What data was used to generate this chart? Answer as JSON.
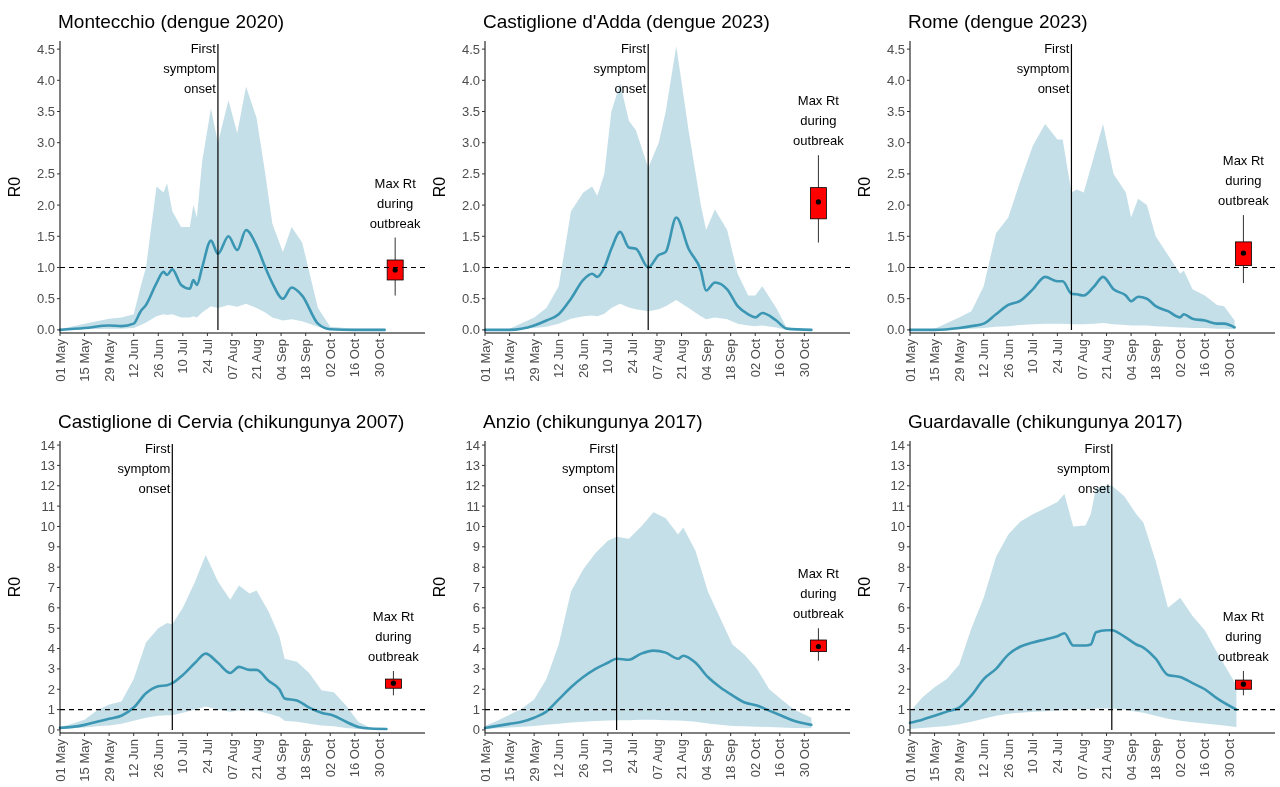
{
  "chart_data": [
    {
      "type": "line",
      "title": "Montecchio (dengue 2020)",
      "ylabel": "R0",
      "xlim": [
        "--05-01",
        "--11-25"
      ],
      "ylim": [
        -0.05,
        4.63
      ],
      "xticks": [
        {
          "value": "--05-01",
          "label": "01 May"
        },
        {
          "value": "--05-15",
          "label": "15 May"
        },
        {
          "value": "--05-29",
          "label": "29 May"
        },
        {
          "value": "--06-12",
          "label": "12 Jun"
        },
        {
          "value": "--06-26",
          "label": "26 Jun"
        },
        {
          "value": "--07-10",
          "label": "10 Jul"
        },
        {
          "value": "--07-24",
          "label": "24 Jul"
        },
        {
          "value": "--08-07",
          "label": "07 Aug"
        },
        {
          "value": "--08-21",
          "label": "21 Aug"
        },
        {
          "value": "--09-04",
          "label": "04 Sep"
        },
        {
          "value": "--09-18",
          "label": "18 Sep"
        },
        {
          "value": "--10-02",
          "label": "02 Oct"
        },
        {
          "value": "--10-16",
          "label": "16 Oct"
        },
        {
          "value": "--10-30",
          "label": "30 Oct"
        }
      ],
      "yticks": [
        {
          "value": 0,
          "label": "0.0"
        },
        {
          "value": 0.5,
          "label": "0.5"
        },
        {
          "value": 1,
          "label": "1.0"
        },
        {
          "value": 1.5,
          "label": "1.5"
        },
        {
          "value": 2,
          "label": "2.0"
        },
        {
          "value": 2.5,
          "label": "2.5"
        },
        {
          "value": 3,
          "label": "3.0"
        },
        {
          "value": 3.5,
          "label": "3.5"
        },
        {
          "value": 4,
          "label": "4.0"
        },
        {
          "value": 4.5,
          "label": "4.5"
        }
      ],
      "series": [
        {
          "type": "line",
          "color": "#3b96b3",
          "x": [
            "--05-01",
            "--05-15",
            "--05-29",
            "--06-05",
            "--06-12",
            "--06-16",
            "--06-19",
            "--06-25",
            "--06-29",
            "--07-01",
            "--07-04",
            "--07-09",
            "--07-14",
            "--07-16",
            "--07-18",
            "--07-21",
            "--07-26",
            "--07-30",
            "--08-05",
            "--08-10",
            "--08-15",
            "--08-21",
            "--08-26",
            "--08-30",
            "--09-05",
            "--09-10",
            "--09-16",
            "--09-25",
            "--10-02",
            "--10-16",
            "--11-02"
          ],
          "values": [
            0,
            0.03,
            0.07,
            0.06,
            0.1,
            0.3,
            0.4,
            0.75,
            0.93,
            0.88,
            0.97,
            0.72,
            0.66,
            0.8,
            0.72,
            1.0,
            1.43,
            1.22,
            1.5,
            1.28,
            1.6,
            1.35,
            1.0,
            0.75,
            0.5,
            0.68,
            0.55,
            0.1,
            0.01,
            0,
            0
          ],
          "upper": [
            0.01,
            0.1,
            0.18,
            0.2,
            0.25,
            0.7,
            1.0,
            2.3,
            2.2,
            2.35,
            1.9,
            1.65,
            1.65,
            2.0,
            1.8,
            2.7,
            3.55,
            3.0,
            3.68,
            3.15,
            3.9,
            3.4,
            2.5,
            1.7,
            1.25,
            1.65,
            1.4,
            0.35,
            0.05,
            0.02,
            0.02
          ],
          "lower": [
            0,
            0.01,
            0.02,
            0.02,
            0.03,
            0.08,
            0.12,
            0.22,
            0.25,
            0.24,
            0.25,
            0.2,
            0.2,
            0.22,
            0.2,
            0.28,
            0.38,
            0.35,
            0.4,
            0.37,
            0.42,
            0.35,
            0.28,
            0.2,
            0.15,
            0.17,
            0.14,
            0.05,
            0,
            0,
            0
          ]
        },
        {
          "type": "box",
          "color": "#ff0000",
          "x": [
            "--11-08"
          ],
          "boxes": [
            {
              "low": 0.55,
              "q1": 0.8,
              "median": 0.96,
              "q3": 1.12,
              "high": 1.48
            }
          ]
        }
      ],
      "ref_lines": [
        {
          "axis": "x",
          "value": "--07-30",
          "label": "First symptom onset",
          "color": "#000000"
        },
        {
          "axis": "y",
          "value": 1,
          "line_style": "dashed",
          "color": "#000000"
        }
      ],
      "annotations": [
        {
          "text": "Max Rt during outbreak",
          "x": "--11-08",
          "y": 1.48
        }
      ]
    },
    {
      "type": "line",
      "title": "Castiglione d'Adda (dengue 2023)",
      "ylabel": "R0",
      "xlim": [
        "--05-01",
        "--11-25"
      ],
      "ylim": [
        -0.05,
        4.63
      ],
      "xticks": [
        {
          "value": "--05-01",
          "label": "01 May"
        },
        {
          "value": "--05-15",
          "label": "15 May"
        },
        {
          "value": "--05-29",
          "label": "29 May"
        },
        {
          "value": "--06-12",
          "label": "12 Jun"
        },
        {
          "value": "--06-26",
          "label": "26 Jun"
        },
        {
          "value": "--07-10",
          "label": "10 Jul"
        },
        {
          "value": "--07-24",
          "label": "24 Jul"
        },
        {
          "value": "--08-07",
          "label": "07 Aug"
        },
        {
          "value": "--08-21",
          "label": "21 Aug"
        },
        {
          "value": "--09-04",
          "label": "04 Sep"
        },
        {
          "value": "--09-18",
          "label": "18 Sep"
        },
        {
          "value": "--10-02",
          "label": "02 Oct"
        },
        {
          "value": "--10-16",
          "label": "16 Oct"
        },
        {
          "value": "--10-30",
          "label": "30 Oct"
        }
      ],
      "yticks": [
        {
          "value": 0,
          "label": "0.0"
        },
        {
          "value": 0.5,
          "label": "0.5"
        },
        {
          "value": 1,
          "label": "1.0"
        },
        {
          "value": 1.5,
          "label": "1.5"
        },
        {
          "value": 2,
          "label": "2.0"
        },
        {
          "value": 2.5,
          "label": "2.5"
        },
        {
          "value": 3,
          "label": "3.0"
        },
        {
          "value": 3.5,
          "label": "3.5"
        },
        {
          "value": 4,
          "label": "4.0"
        },
        {
          "value": 4.5,
          "label": "4.5"
        }
      ],
      "series": [
        {
          "type": "line",
          "color": "#3b96b3",
          "x": [
            "--05-01",
            "--05-15",
            "--05-29",
            "--06-05",
            "--06-12",
            "--06-19",
            "--06-26",
            "--07-01",
            "--07-04",
            "--07-08",
            "--07-12",
            "--07-17",
            "--07-22",
            "--07-26",
            "--08-02",
            "--08-08",
            "--08-12",
            "--08-18",
            "--08-25",
            "--09-01",
            "--09-04",
            "--09-09",
            "--09-16",
            "--09-22",
            "--09-28",
            "--10-02",
            "--10-06",
            "--10-14",
            "--10-20",
            "--11-03"
          ],
          "values": [
            0,
            0,
            0.07,
            0.15,
            0.25,
            0.5,
            0.8,
            0.9,
            0.85,
            1.0,
            1.3,
            1.57,
            1.32,
            1.3,
            1.0,
            1.2,
            1.25,
            1.8,
            1.3,
            0.95,
            0.63,
            0.76,
            0.65,
            0.38,
            0.25,
            0.2,
            0.27,
            0.15,
            0.02,
            0
          ],
          "upper": [
            0,
            0.02,
            0.2,
            0.35,
            0.7,
            1.9,
            2.2,
            2.3,
            2.15,
            2.5,
            3.5,
            3.95,
            3.35,
            3.2,
            2.6,
            3.0,
            3.5,
            4.55,
            3.2,
            2.0,
            1.6,
            1.93,
            1.6,
            0.9,
            0.55,
            0.55,
            0.7,
            0.35,
            0.03,
            0
          ],
          "lower": [
            0,
            0,
            0.03,
            0.05,
            0.1,
            0.18,
            0.22,
            0.23,
            0.22,
            0.26,
            0.35,
            0.42,
            0.36,
            0.33,
            0.3,
            0.33,
            0.38,
            0.48,
            0.35,
            0.22,
            0.17,
            0.2,
            0.17,
            0.1,
            0.07,
            0.06,
            0.07,
            0.04,
            0,
            0
          ]
        },
        {
          "type": "box",
          "color": "#ff0000",
          "x": [
            "--11-07"
          ],
          "boxes": [
            {
              "low": 1.4,
              "q1": 1.78,
              "median": 2.05,
              "q3": 2.28,
              "high": 2.8
            }
          ]
        }
      ],
      "ref_lines": [
        {
          "axis": "x",
          "value": "--08-02",
          "label": "First symptom onset",
          "color": "#000000"
        },
        {
          "axis": "y",
          "value": 1,
          "line_style": "dashed",
          "color": "#000000"
        }
      ],
      "annotations": [
        {
          "text": "Max Rt during outbreak",
          "x": "--11-07",
          "y": 2.8
        }
      ]
    },
    {
      "type": "line",
      "title": "Rome (dengue 2023)",
      "ylabel": "R0",
      "xlim": [
        "--05-01",
        "--11-25"
      ],
      "ylim": [
        -0.05,
        4.63
      ],
      "xticks": [
        {
          "value": "--05-01",
          "label": "01 May"
        },
        {
          "value": "--05-15",
          "label": "15 May"
        },
        {
          "value": "--05-29",
          "label": "29 May"
        },
        {
          "value": "--06-12",
          "label": "12 Jun"
        },
        {
          "value": "--06-26",
          "label": "26 Jun"
        },
        {
          "value": "--07-10",
          "label": "10 Jul"
        },
        {
          "value": "--07-24",
          "label": "24 Jul"
        },
        {
          "value": "--08-07",
          "label": "07 Aug"
        },
        {
          "value": "--08-21",
          "label": "21 Aug"
        },
        {
          "value": "--09-04",
          "label": "04 Sep"
        },
        {
          "value": "--09-18",
          "label": "18 Sep"
        },
        {
          "value": "--10-02",
          "label": "02 Oct"
        },
        {
          "value": "--10-16",
          "label": "16 Oct"
        },
        {
          "value": "--10-30",
          "label": "30 Oct"
        }
      ],
      "yticks": [
        {
          "value": 0,
          "label": "0.0"
        },
        {
          "value": 0.5,
          "label": "0.5"
        },
        {
          "value": 1,
          "label": "1.0"
        },
        {
          "value": 1.5,
          "label": "1.5"
        },
        {
          "value": 2,
          "label": "2.0"
        },
        {
          "value": 2.5,
          "label": "2.5"
        },
        {
          "value": 3,
          "label": "3.0"
        },
        {
          "value": 3.5,
          "label": "3.5"
        },
        {
          "value": 4,
          "label": "4.0"
        },
        {
          "value": 4.5,
          "label": "4.5"
        }
      ],
      "series": [
        {
          "type": "line",
          "color": "#3b96b3",
          "x": [
            "--05-01",
            "--05-15",
            "--05-29",
            "--06-05",
            "--06-12",
            "--06-19",
            "--06-26",
            "--07-03",
            "--07-10",
            "--07-17",
            "--07-24",
            "--07-27",
            "--08-01",
            "--08-04",
            "--08-08",
            "--08-14",
            "--08-19",
            "--08-25",
            "--09-01",
            "--09-04",
            "--09-08",
            "--09-13",
            "--09-18",
            "--09-25",
            "--10-02",
            "--10-04",
            "--10-09",
            "--10-16",
            "--10-23",
            "--10-27",
            "--11-02"
          ],
          "values": [
            0,
            0,
            0.03,
            0.06,
            0.1,
            0.25,
            0.4,
            0.47,
            0.65,
            0.85,
            0.78,
            0.78,
            0.58,
            0.57,
            0.55,
            0.7,
            0.85,
            0.65,
            0.55,
            0.46,
            0.53,
            0.5,
            0.38,
            0.3,
            0.2,
            0.25,
            0.18,
            0.15,
            0.1,
            0.1,
            0.04
          ],
          "upper": [
            0,
            0.02,
            0.2,
            0.3,
            0.7,
            1.55,
            1.8,
            2.4,
            2.95,
            3.3,
            3.05,
            3.05,
            2.2,
            2.25,
            2.2,
            2.8,
            3.3,
            2.5,
            2.2,
            1.8,
            2.1,
            2.0,
            1.5,
            1.2,
            0.9,
            0.95,
            0.65,
            0.55,
            0.4,
            0.38,
            0.15
          ],
          "lower": [
            0,
            0,
            0.01,
            0.02,
            0.03,
            0.05,
            0.06,
            0.08,
            0.09,
            0.1,
            0.1,
            0.1,
            0.09,
            0.09,
            0.09,
            0.1,
            0.11,
            0.09,
            0.08,
            0.07,
            0.07,
            0.07,
            0.06,
            0.05,
            0.04,
            0.04,
            0.03,
            0.03,
            0.02,
            0.02,
            0.01
          ]
        },
        {
          "type": "box",
          "color": "#ff0000",
          "x": [
            "--11-07"
          ],
          "boxes": [
            {
              "low": 0.75,
              "q1": 1.03,
              "median": 1.23,
              "q3": 1.41,
              "high": 1.84
            }
          ]
        }
      ],
      "ref_lines": [
        {
          "axis": "x",
          "value": "--08-01",
          "label": "First symptom onset",
          "color": "#000000"
        },
        {
          "axis": "y",
          "value": 1,
          "line_style": "dashed",
          "color": "#000000"
        }
      ],
      "annotations": [
        {
          "text": "Max Rt during outbreak",
          "x": "--11-07",
          "y": 1.84
        }
      ]
    },
    {
      "type": "line",
      "title": "Castiglione di Cervia (chikungunya 2007)",
      "ylabel": "R0",
      "xlim": [
        "--05-01",
        "--11-25"
      ],
      "ylim": [
        -0.15,
        14.2
      ],
      "xticks": [
        {
          "value": "--05-01",
          "label": "01 May"
        },
        {
          "value": "--05-15",
          "label": "15 May"
        },
        {
          "value": "--05-29",
          "label": "29 May"
        },
        {
          "value": "--06-12",
          "label": "12 Jun"
        },
        {
          "value": "--06-26",
          "label": "26 Jun"
        },
        {
          "value": "--07-10",
          "label": "10 Jul"
        },
        {
          "value": "--07-24",
          "label": "24 Jul"
        },
        {
          "value": "--08-07",
          "label": "07 Aug"
        },
        {
          "value": "--08-21",
          "label": "21 Aug"
        },
        {
          "value": "--09-04",
          "label": "04 Sep"
        },
        {
          "value": "--09-18",
          "label": "18 Sep"
        },
        {
          "value": "--10-02",
          "label": "02 Oct"
        },
        {
          "value": "--10-16",
          "label": "16 Oct"
        },
        {
          "value": "--10-30",
          "label": "30 Oct"
        }
      ],
      "yticks": [
        0,
        1,
        2,
        3,
        4,
        5,
        6,
        7,
        8,
        9,
        10,
        11,
        12,
        13,
        14
      ],
      "series": [
        {
          "type": "line",
          "color": "#3b96b3",
          "x": [
            "--05-01",
            "--05-08",
            "--05-15",
            "--05-22",
            "--05-29",
            "--06-05",
            "--06-12",
            "--06-19",
            "--06-26",
            "--07-01",
            "--07-04",
            "--07-10",
            "--07-17",
            "--07-23",
            "--07-30",
            "--08-06",
            "--08-11",
            "--08-17",
            "--08-21",
            "--08-28",
            "--09-03",
            "--09-06",
            "--09-13",
            "--09-20",
            "--09-27",
            "--10-04",
            "--10-11",
            "--10-18",
            "--10-25",
            "--11-03"
          ],
          "values": [
            0.1,
            0.15,
            0.25,
            0.4,
            0.55,
            0.7,
            1.1,
            1.8,
            2.15,
            2.2,
            2.3,
            2.7,
            3.3,
            3.75,
            3.3,
            2.8,
            3.1,
            2.95,
            2.95,
            2.4,
            2.0,
            1.55,
            1.45,
            1.1,
            0.85,
            0.7,
            0.4,
            0.15,
            0.07,
            0.05
          ],
          "upper": [
            0.15,
            0.3,
            0.5,
            0.95,
            1.25,
            1.4,
            2.5,
            4.3,
            5.0,
            5.25,
            5.2,
            6.0,
            7.3,
            8.6,
            7.3,
            6.4,
            7.1,
            6.7,
            6.85,
            5.8,
            4.6,
            3.5,
            3.35,
            2.8,
            1.95,
            1.85,
            1.2,
            0.4,
            0.1,
            0.05
          ],
          "lower": [
            0.05,
            0.08,
            0.12,
            0.18,
            0.22,
            0.3,
            0.45,
            0.6,
            0.7,
            0.72,
            0.72,
            0.85,
            1.0,
            1.15,
            1.0,
            0.9,
            0.95,
            0.95,
            0.95,
            0.8,
            0.65,
            0.45,
            0.4,
            0.3,
            0.22,
            0.18,
            0.1,
            0.05,
            0.02,
            0.02
          ]
        },
        {
          "type": "box",
          "color": "#ff0000",
          "x": [
            "--11-07"
          ],
          "boxes": [
            {
              "low": 1.7,
              "q1": 2.05,
              "median": 2.3,
              "q3": 2.5,
              "high": 2.9
            }
          ]
        }
      ],
      "ref_lines": [
        {
          "axis": "x",
          "value": "--07-04",
          "label": "First symptom onset",
          "color": "#000000"
        },
        {
          "axis": "y",
          "value": 1,
          "line_style": "dashed",
          "color": "#000000"
        }
      ],
      "annotations": [
        {
          "text": "Max Rt during outbreak",
          "x": "--11-07",
          "y": 2.9
        }
      ]
    },
    {
      "type": "line",
      "title": "Anzio (chikungunya 2017)",
      "ylabel": "R0",
      "xlim": [
        "--05-01",
        "--11-25"
      ],
      "ylim": [
        -0.15,
        14.2
      ],
      "xticks": [
        {
          "value": "--05-01",
          "label": "01 May"
        },
        {
          "value": "--05-15",
          "label": "15 May"
        },
        {
          "value": "--05-29",
          "label": "29 May"
        },
        {
          "value": "--06-12",
          "label": "12 Jun"
        },
        {
          "value": "--06-26",
          "label": "26 Jun"
        },
        {
          "value": "--07-10",
          "label": "10 Jul"
        },
        {
          "value": "--07-24",
          "label": "24 Jul"
        },
        {
          "value": "--08-07",
          "label": "07 Aug"
        },
        {
          "value": "--08-21",
          "label": "21 Aug"
        },
        {
          "value": "--09-04",
          "label": "04 Sep"
        },
        {
          "value": "--09-18",
          "label": "18 Sep"
        },
        {
          "value": "--10-02",
          "label": "02 Oct"
        },
        {
          "value": "--10-16",
          "label": "16 Oct"
        },
        {
          "value": "--10-30",
          "label": "30 Oct"
        }
      ],
      "yticks": [
        0,
        1,
        2,
        3,
        4,
        5,
        6,
        7,
        8,
        9,
        10,
        11,
        12,
        13,
        14
      ],
      "series": [
        {
          "type": "line",
          "color": "#3b96b3",
          "x": [
            "--05-01",
            "--05-08",
            "--05-15",
            "--05-22",
            "--05-29",
            "--06-05",
            "--06-12",
            "--06-19",
            "--06-26",
            "--07-03",
            "--07-10",
            "--07-15",
            "--07-22",
            "--07-29",
            "--08-05",
            "--08-12",
            "--08-19",
            "--08-22",
            "--08-29",
            "--09-05",
            "--09-12",
            "--09-19",
            "--09-26",
            "--10-03",
            "--10-10",
            "--10-17",
            "--10-24",
            "--11-03"
          ],
          "values": [
            0.1,
            0.2,
            0.3,
            0.4,
            0.6,
            0.9,
            1.5,
            2.1,
            2.6,
            3.0,
            3.3,
            3.5,
            3.45,
            3.75,
            3.9,
            3.8,
            3.5,
            3.65,
            3.3,
            2.6,
            2.1,
            1.7,
            1.35,
            1.2,
            0.95,
            0.7,
            0.45,
            0.25
          ],
          "upper": [
            0.2,
            0.45,
            0.75,
            1.05,
            1.5,
            2.5,
            4.2,
            6.8,
            7.9,
            8.7,
            9.3,
            9.5,
            9.4,
            10.0,
            10.7,
            10.4,
            9.6,
            9.95,
            8.8,
            6.8,
            5.5,
            4.2,
            3.7,
            3.0,
            2.0,
            1.5,
            1.0,
            0.6
          ],
          "lower": [
            0.05,
            0.08,
            0.12,
            0.16,
            0.2,
            0.25,
            0.3,
            0.36,
            0.4,
            0.44,
            0.46,
            0.48,
            0.48,
            0.5,
            0.5,
            0.48,
            0.46,
            0.45,
            0.4,
            0.32,
            0.25,
            0.2,
            0.18,
            0.16,
            0.14,
            0.12,
            0.1,
            0.08
          ]
        },
        {
          "type": "box",
          "color": "#ff0000",
          "x": [
            "--11-07"
          ],
          "boxes": [
            {
              "low": 3.4,
              "q1": 3.85,
              "median": 4.1,
              "q3": 4.42,
              "high": 5.0
            }
          ]
        }
      ],
      "ref_lines": [
        {
          "axis": "x",
          "value": "--07-15",
          "label": "First symptom onset",
          "color": "#000000"
        },
        {
          "axis": "y",
          "value": 1,
          "line_style": "dashed",
          "color": "#000000"
        }
      ],
      "annotations": [
        {
          "text": "Max Rt during outbreak",
          "x": "--11-07",
          "y": 5.0
        }
      ]
    },
    {
      "type": "line",
      "title": "Guardavalle (chikungunya 2017)",
      "ylabel": "R0",
      "xlim": [
        "--05-01",
        "--11-25"
      ],
      "ylim": [
        -0.15,
        14.2
      ],
      "xticks": [
        {
          "value": "--05-01",
          "label": "01 May"
        },
        {
          "value": "--05-15",
          "label": "15 May"
        },
        {
          "value": "--05-29",
          "label": "29 May"
        },
        {
          "value": "--06-12",
          "label": "12 Jun"
        },
        {
          "value": "--06-26",
          "label": "26 Jun"
        },
        {
          "value": "--07-10",
          "label": "10 Jul"
        },
        {
          "value": "--07-24",
          "label": "24 Jul"
        },
        {
          "value": "--08-07",
          "label": "07 Aug"
        },
        {
          "value": "--08-21",
          "label": "21 Aug"
        },
        {
          "value": "--09-04",
          "label": "04 Sep"
        },
        {
          "value": "--09-18",
          "label": "18 Sep"
        },
        {
          "value": "--10-02",
          "label": "02 Oct"
        },
        {
          "value": "--10-16",
          "label": "16 Oct"
        },
        {
          "value": "--10-30",
          "label": "30 Oct"
        }
      ],
      "yticks": [
        0,
        1,
        2,
        3,
        4,
        5,
        6,
        7,
        8,
        9,
        10,
        11,
        12,
        13,
        14
      ],
      "series": [
        {
          "type": "line",
          "color": "#3b96b3",
          "x": [
            "--05-01",
            "--05-08",
            "--05-15",
            "--05-22",
            "--05-29",
            "--06-05",
            "--06-12",
            "--06-19",
            "--06-26",
            "--07-03",
            "--07-10",
            "--07-17",
            "--07-24",
            "--07-28",
            "--08-02",
            "--08-09",
            "--08-12",
            "--08-15",
            "--08-21",
            "--08-24",
            "--08-31",
            "--09-07",
            "--09-11",
            "--09-18",
            "--09-25",
            "--10-02",
            "--10-09",
            "--10-16",
            "--10-23",
            "--11-03"
          ],
          "values": [
            0.35,
            0.5,
            0.7,
            0.9,
            1.1,
            1.7,
            2.5,
            3.0,
            3.7,
            4.1,
            4.3,
            4.45,
            4.6,
            4.75,
            4.15,
            4.15,
            4.2,
            4.8,
            4.9,
            4.9,
            4.6,
            4.2,
            4.05,
            3.5,
            2.7,
            2.6,
            2.3,
            2.0,
            1.55,
            1.0
          ],
          "upper": [
            0.9,
            1.6,
            2.1,
            2.5,
            3.2,
            5.0,
            6.5,
            8.5,
            9.6,
            10.25,
            10.6,
            10.9,
            11.2,
            11.6,
            10.0,
            10.05,
            10.6,
            11.9,
            12.0,
            12.0,
            11.5,
            10.6,
            10.2,
            8.3,
            6.0,
            6.5,
            5.6,
            4.9,
            3.8,
            2.2
          ],
          "lower": [
            0.05,
            0.1,
            0.15,
            0.2,
            0.28,
            0.4,
            0.55,
            0.7,
            0.8,
            0.85,
            0.9,
            0.92,
            0.95,
            0.97,
            1.0,
            1.0,
            1.0,
            1.05,
            1.05,
            1.05,
            1.0,
            0.9,
            0.85,
            0.7,
            0.55,
            0.45,
            0.38,
            0.32,
            0.25,
            0.15
          ]
        },
        {
          "type": "box",
          "color": "#ff0000",
          "x": [
            "--11-07"
          ],
          "boxes": [
            {
              "low": 1.7,
              "q1": 2.0,
              "median": 2.25,
              "q3": 2.45,
              "high": 2.9
            }
          ]
        }
      ],
      "ref_lines": [
        {
          "axis": "x",
          "value": "--08-24",
          "label": "First symptom onset",
          "color": "#000000"
        },
        {
          "axis": "y",
          "value": 1,
          "line_style": "dashed",
          "color": "#000000"
        }
      ],
      "annotations": [
        {
          "text": "Max Rt during outbreak",
          "x": "--11-07",
          "y": 2.9
        }
      ]
    }
  ]
}
